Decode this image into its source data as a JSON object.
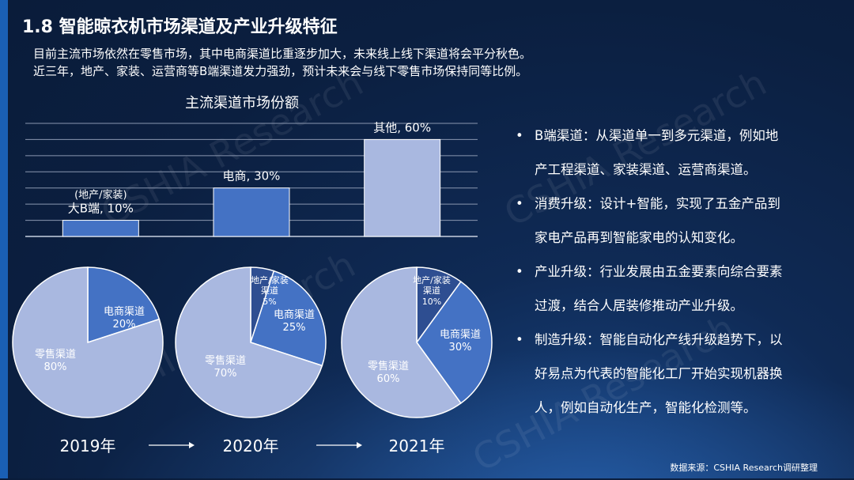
{
  "title": "1.8 智能晾衣机市场渠道及产业升级特征",
  "intro": [
    "目前主流市场依然在零售市场，其中电商渠道比重逐步加大，未来线上线下渠道将会平分秋色。",
    "近三年，地产、家装、运营商等B端渠道发力强劲，预计未来会与线下零售市场保持同等比例。"
  ],
  "watermark": "CSHIA Research",
  "colors": {
    "bar": "#4472c4",
    "bar_light": "#a9b8e0",
    "pie_retail": "#a9b8e0",
    "pie_ecom": "#4472c4",
    "pie_b": "#2e4e91"
  },
  "bullets": [
    {
      "dot": "•",
      "lines": [
        "B端渠道：从渠道单一到多元渠道，例如地",
        "产工程渠道、家装渠道、运营商渠道。"
      ]
    },
    {
      "dot": "•",
      "lines": [
        "消费升级：设计+智能，实现了五金产品到",
        "家电产品再到智能家电的认知变化。"
      ]
    },
    {
      "dot": "•",
      "lines": [
        "产业升级：行业发展由五金要素向综合要素",
        "过渡，结合人居装修推动产业升级。"
      ]
    },
    {
      "dot": "•",
      "lines": [
        "制造升级：智能自动化产线升级趋势下，以",
        "好易点为代表的智能化工厂开始实现机器换",
        "人，例如自动化生产，智能化检测等。"
      ]
    }
  ],
  "source": "数据来源：CSHIA Research调研整理",
  "chart_data": [
    {
      "type": "bar",
      "title": "主流渠道市场份额",
      "categories": [
        "大B端",
        "电商",
        "其他"
      ],
      "category_prefix": [
        "(地产/家装)",
        "",
        ""
      ],
      "data_labels": [
        "大B端, 10%",
        "电商, 30%",
        "其他, 60%"
      ],
      "values": [
        10,
        30,
        60
      ],
      "ylim": [
        0,
        70
      ],
      "grid": true,
      "xlabel": "",
      "ylabel": ""
    },
    {
      "type": "pie",
      "label": "2019年",
      "slices": [
        {
          "name": "电商渠道",
          "value": 20,
          "text": "20%"
        },
        {
          "name": "零售渠道",
          "value": 80,
          "text": "80%"
        }
      ]
    },
    {
      "type": "pie",
      "label": "2020年",
      "slices": [
        {
          "name": "地产/家装渠道",
          "value": 5,
          "text": "5%"
        },
        {
          "name": "电商渠道",
          "value": 25,
          "text": "25%"
        },
        {
          "name": "零售渠道",
          "value": 70,
          "text": "70%"
        }
      ]
    },
    {
      "type": "pie",
      "label": "2021年",
      "slices": [
        {
          "name": "地产/家装渠道",
          "value": 10,
          "text": "10%"
        },
        {
          "name": "电商渠道",
          "value": 30,
          "text": "30%"
        },
        {
          "name": "零售渠道",
          "value": 60,
          "text": "60%"
        }
      ]
    }
  ]
}
